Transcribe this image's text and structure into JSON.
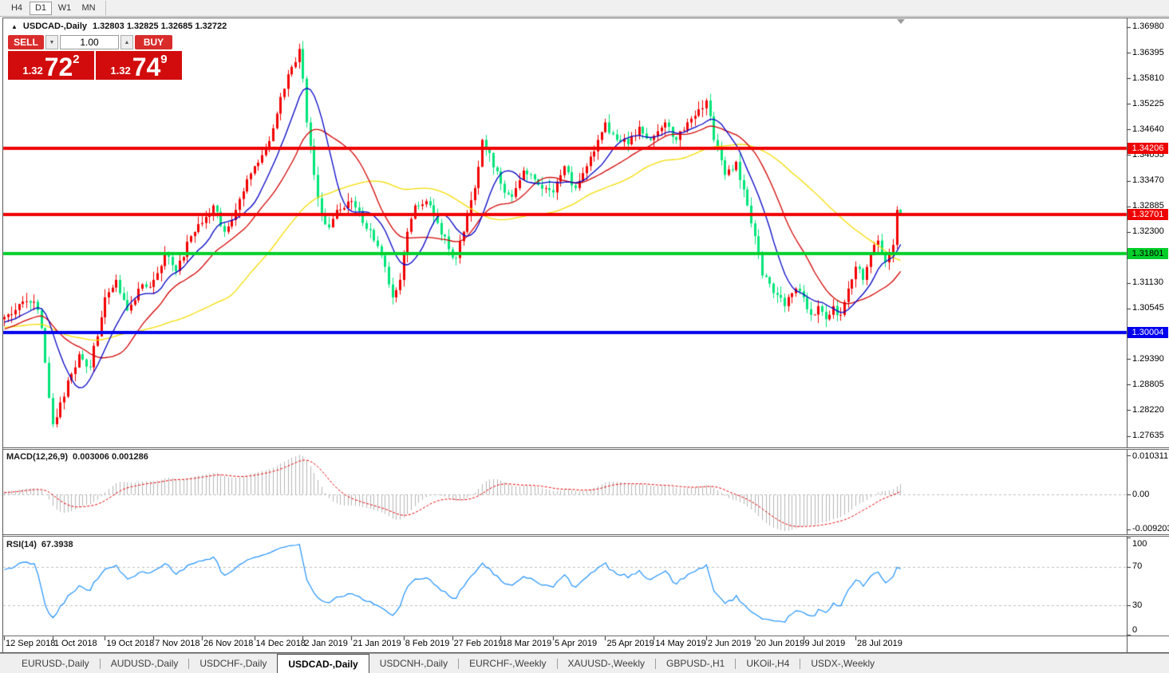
{
  "toolbar": {
    "timeframes": [
      "H4",
      "D1",
      "W1",
      "MN"
    ],
    "active": "D1"
  },
  "chart": {
    "collapse_icon": "▲",
    "symbol": "USDCAD-,Daily",
    "ohlc": "1.32803 1.32825 1.32685 1.32722"
  },
  "trade_panel": {
    "sell_label": "SELL",
    "buy_label": "BUY",
    "volume": "1.00",
    "spinner_down_icon": "▼",
    "spinner_up_icon": "▲",
    "sell_price": {
      "prefix": "1.32",
      "big": "72",
      "sup": "2"
    },
    "buy_price": {
      "prefix": "1.32",
      "big": "74",
      "sup": "9"
    }
  },
  "price_axis": {
    "ticks": [
      "1.36980",
      "1.36395",
      "1.35810",
      "1.35225",
      "1.34640",
      "1.34055",
      "1.33470",
      "1.32885",
      "1.32300",
      "1.31715",
      "1.31130",
      "1.30545",
      "1.29960",
      "1.29390",
      "1.28805",
      "1.28220",
      "1.27635"
    ]
  },
  "hlines": [
    {
      "price": "1.34206",
      "value": 1.34206,
      "color": "#ef0000",
      "text_color": "#ffffff",
      "thickness": 4
    },
    {
      "price": "1.32701",
      "value": 1.32701,
      "color": "#ef0000",
      "text_color": "#ffffff",
      "thickness": 4
    },
    {
      "price": "1.31801",
      "value": 1.31801,
      "color": "#00cf2a",
      "text_color": "#000000",
      "thickness": 4
    },
    {
      "price": "1.30004",
      "value": 1.30004,
      "color": "#0000ef",
      "text_color": "#ffffff",
      "thickness": 4
    }
  ],
  "panes": {
    "macd": {
      "label": "MACD(12,26,9)",
      "values": "0.003006 0.001286",
      "axis_labels": [
        {
          "text": "0.010311",
          "value": 0.010311
        },
        {
          "text": "0.00",
          "value": 0.0
        },
        {
          "text": "-0.009203",
          "value": -0.009203
        }
      ]
    },
    "rsi": {
      "label": "RSI(14)",
      "value": "67.3938",
      "axis_labels": [
        {
          "text": "100",
          "value": 100
        },
        {
          "text": "70",
          "value": 70
        },
        {
          "text": "30",
          "value": 30
        },
        {
          "text": "0",
          "value": 0
        }
      ],
      "levels": [
        70,
        30
      ]
    }
  },
  "x_axis": {
    "labels": [
      [
        0,
        "12 Sep 2018"
      ],
      [
        13,
        "1 Oct 2018"
      ],
      [
        27,
        "19 Oct 2018"
      ],
      [
        40,
        "7 Nov 2018"
      ],
      [
        53,
        "26 Nov 2018"
      ],
      [
        67,
        "14 Dec 2018"
      ],
      [
        80,
        "2 Jan 2019"
      ],
      [
        93,
        "21 Jan 2019"
      ],
      [
        107,
        "8 Feb 2019"
      ],
      [
        120,
        "27 Feb 2019"
      ],
      [
        133,
        "18 Mar 2019"
      ],
      [
        147,
        "5 Apr 2019"
      ],
      [
        161,
        "25 Apr 2019"
      ],
      [
        174,
        "14 May 2019"
      ],
      [
        188,
        "2 Jun 2019"
      ],
      [
        201,
        "20 Jun 2019"
      ],
      [
        214,
        "9 Jul 2019"
      ],
      [
        228,
        "28 Jul 2019"
      ]
    ]
  },
  "tabs": {
    "items": [
      "EURUSD-,Daily",
      "AUDUSD-,Daily",
      "USDCHF-,Daily",
      "USDCAD-,Daily",
      "USDCNH-,Daily",
      "EURCHF-,Weekly",
      "XAUUSD-,Weekly",
      "GBPUSD-,H1",
      "UKOil-,H4",
      "USDX-,Weekly"
    ],
    "active_index": 3
  },
  "chart_data": {
    "type": "candlestick",
    "symbol": "USDCAD",
    "timeframe": "Daily",
    "n_candles": 241,
    "last_candle": {
      "open": 1.32803,
      "high": 1.32825,
      "low": 1.32685,
      "close": 1.32722
    },
    "price_scale": {
      "max": 1.3718,
      "min": 1.2739
    },
    "macd_scale": {
      "max": 0.0118,
      "min": -0.0102
    },
    "pre_anchors": [
      [
        0,
        1.296
      ],
      [
        20,
        1.304
      ],
      [
        40,
        1.298
      ],
      [
        59,
        1.303
      ]
    ],
    "anchors": [
      [
        0,
        1.3035
      ],
      [
        4,
        1.3065
      ],
      [
        8,
        1.307
      ],
      [
        10,
        1.301
      ],
      [
        12,
        1.285
      ],
      [
        13,
        1.279
      ],
      [
        15,
        1.284
      ],
      [
        18,
        1.2905
      ],
      [
        20,
        1.295
      ],
      [
        23,
        1.292
      ],
      [
        27,
        1.308
      ],
      [
        30,
        1.312
      ],
      [
        33,
        1.305
      ],
      [
        36,
        1.31
      ],
      [
        40,
        1.312
      ],
      [
        43,
        1.318
      ],
      [
        46,
        1.314
      ],
      [
        50,
        1.322
      ],
      [
        53,
        1.325
      ],
      [
        56,
        1.329
      ],
      [
        59,
        1.323
      ],
      [
        62,
        1.328
      ],
      [
        65,
        1.335
      ],
      [
        67,
        1.338
      ],
      [
        70,
        1.342
      ],
      [
        73,
        1.35
      ],
      [
        76,
        1.359
      ],
      [
        79,
        1.3648
      ],
      [
        80,
        1.358
      ],
      [
        81,
        1.348
      ],
      [
        83,
        1.336
      ],
      [
        85,
        1.327
      ],
      [
        87,
        1.324
      ],
      [
        89,
        1.328
      ],
      [
        93,
        1.33
      ],
      [
        96,
        1.325
      ],
      [
        99,
        1.321
      ],
      [
        102,
        1.315
      ],
      [
        104,
        1.308
      ],
      [
        106,
        1.312
      ],
      [
        108,
        1.323
      ],
      [
        110,
        1.329
      ],
      [
        113,
        1.33
      ],
      [
        116,
        1.325
      ],
      [
        119,
        1.319
      ],
      [
        121,
        1.317
      ],
      [
        123,
        1.323
      ],
      [
        126,
        1.333
      ],
      [
        128,
        1.344
      ],
      [
        130,
        1.341
      ],
      [
        133,
        1.334
      ],
      [
        136,
        1.331
      ],
      [
        139,
        1.337
      ],
      [
        142,
        1.335
      ],
      [
        145,
        1.333
      ],
      [
        147,
        1.332
      ],
      [
        150,
        1.338
      ],
      [
        153,
        1.333
      ],
      [
        156,
        1.338
      ],
      [
        159,
        1.344
      ],
      [
        161,
        1.348
      ],
      [
        164,
        1.344
      ],
      [
        167,
        1.343
      ],
      [
        170,
        1.347
      ],
      [
        173,
        1.344
      ],
      [
        175,
        1.346
      ],
      [
        177,
        1.348
      ],
      [
        180,
        1.344
      ],
      [
        183,
        1.348
      ],
      [
        186,
        1.351
      ],
      [
        188,
        1.353
      ],
      [
        190,
        1.344
      ],
      [
        193,
        1.336
      ],
      [
        196,
        1.339
      ],
      [
        199,
        1.329
      ],
      [
        201,
        1.322
      ],
      [
        203,
        1.313
      ],
      [
        206,
        1.309
      ],
      [
        209,
        1.306
      ],
      [
        212,
        1.31
      ],
      [
        214,
        1.308
      ],
      [
        216,
        1.304
      ],
      [
        218,
        1.306
      ],
      [
        220,
        1.303
      ],
      [
        222,
        1.306
      ],
      [
        224,
        1.304
      ],
      [
        226,
        1.31
      ],
      [
        228,
        1.315
      ],
      [
        230,
        1.312
      ],
      [
        232,
        1.318
      ],
      [
        234,
        1.321
      ],
      [
        236,
        1.316
      ],
      [
        238,
        1.32
      ],
      [
        239,
        1.328
      ],
      [
        240,
        1.32722
      ]
    ],
    "special": {
      "low_idx13": 1.2783,
      "high_idx79": 1.366,
      "high_idx239": 1.32885
    },
    "colors": {
      "up": "#f20000",
      "down": "#00e57a",
      "ma_fast": "#0000c8",
      "ma_mid": "#d40000",
      "ma_slow": "#f5dc00",
      "macd_hist": "#b6b6b6",
      "macd_signal": "#e60000",
      "rsi_line": "#1e90ff",
      "level_dash": "#bdbdbd"
    },
    "ma_periods": [
      10,
      21,
      50
    ],
    "macd_params": [
      12,
      26,
      9
    ],
    "rsi_period": 14
  }
}
